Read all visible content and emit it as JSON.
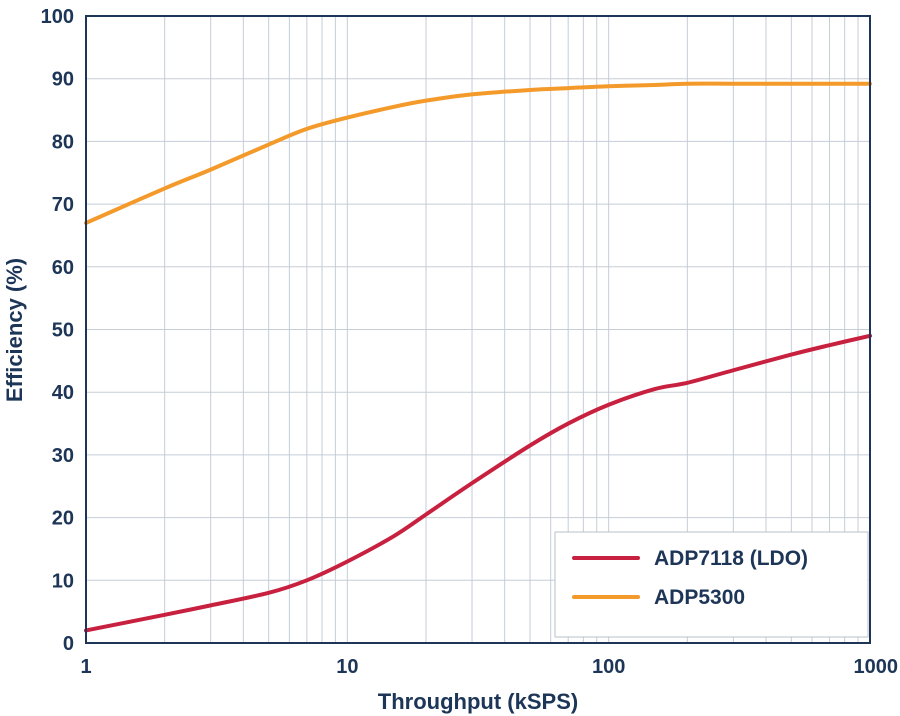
{
  "chart_data": {
    "type": "line",
    "xlabel": "Throughput (kSPS)",
    "ylabel": "Efficiency (%)",
    "xscale": "log",
    "xlim": [
      1,
      1000
    ],
    "ylim": [
      0,
      100
    ],
    "x_ticks": [
      1,
      10,
      100,
      1000
    ],
    "x_tick_labels": [
      "1",
      "10",
      "100",
      "1000"
    ],
    "y_ticks": [
      0,
      10,
      20,
      30,
      40,
      50,
      60,
      70,
      80,
      90,
      100
    ],
    "y_tick_labels": [
      "0",
      "10",
      "20",
      "30",
      "40",
      "50",
      "60",
      "70",
      "80",
      "90",
      "100"
    ],
    "grid": true,
    "legend_position": "bottom-right",
    "series": [
      {
        "name": "ADP7118 (LDO)",
        "color": "#c8203f",
        "x": [
          1,
          2,
          3,
          5,
          7,
          10,
          15,
          20,
          30,
          50,
          70,
          100,
          150,
          200,
          300,
          500,
          700,
          1000
        ],
        "y": [
          2,
          4.5,
          6,
          8,
          10,
          13,
          17,
          20.5,
          25.5,
          31.5,
          35,
          38,
          40.5,
          41.5,
          43.5,
          46,
          47.5,
          49
        ]
      },
      {
        "name": "ADP5300",
        "color": "#f39a2b",
        "x": [
          1,
          2,
          3,
          5,
          7,
          10,
          15,
          20,
          30,
          50,
          70,
          100,
          150,
          200,
          300,
          500,
          700,
          1000
        ],
        "y": [
          67,
          72.5,
          75.5,
          79.5,
          82,
          83.8,
          85.5,
          86.5,
          87.5,
          88.2,
          88.5,
          88.8,
          89,
          89.2,
          89.2,
          89.2,
          89.2,
          89.2
        ]
      }
    ]
  }
}
